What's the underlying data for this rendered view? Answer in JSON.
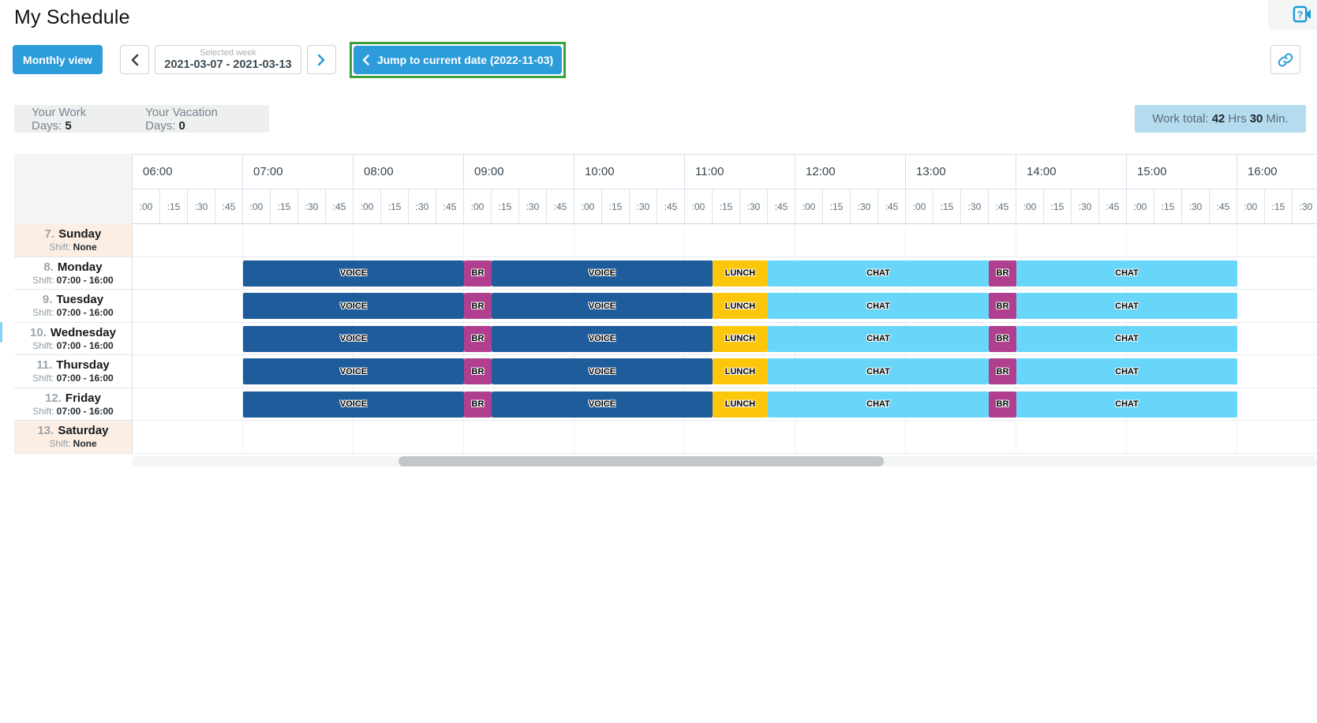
{
  "page": {
    "title": "My Schedule"
  },
  "toolbar": {
    "monthly_view": "Monthly view",
    "selected_week_label": "Selected week",
    "selected_week_value": "2021-03-07 - 2021-03-13",
    "jump_button": "Jump to current date (2022-11-03)"
  },
  "stats": {
    "work_days_label": "Your Work Days:",
    "work_days_value": "5",
    "vacation_days_label": "Your Vacation Days:",
    "vacation_days_value": "0",
    "work_total_label": "Work total:",
    "work_total_hours": "42",
    "work_total_hours_unit": "Hrs",
    "work_total_minutes": "30",
    "work_total_minutes_unit": "Min."
  },
  "icons": {
    "help": "help-icon",
    "link": "link-icon",
    "prev": "chevron-left-icon",
    "next": "chevron-right-icon",
    "jump": "chevron-left-icon"
  },
  "colors": {
    "voice": "#1f5c9b",
    "br": "#b0408f",
    "lunch": "#fcc60b",
    "chat": "#68d6f8",
    "accent": "#2d9cdb",
    "highlight_border": "#3aa13c",
    "off_day_bg": "#fdeee3",
    "work_total_bg": "#b4dcee"
  },
  "schedule": {
    "timeline_start": "06:00",
    "hours": [
      "06:00",
      "07:00",
      "08:00",
      "09:00",
      "10:00",
      "11:00",
      "12:00",
      "13:00",
      "14:00",
      "15:00",
      "16:00"
    ],
    "quarters": [
      ":00",
      ":15",
      ":30",
      ":45"
    ],
    "shift_label": "Shift:",
    "days": [
      {
        "number": "7.",
        "name": "Sunday",
        "shift": "None",
        "off": true,
        "segments": []
      },
      {
        "number": "8.",
        "name": "Monday",
        "shift": "07:00 - 16:00",
        "off": false,
        "segments": [
          {
            "label": "VOICE",
            "type": "voice",
            "start": "07:00",
            "end": "09:00"
          },
          {
            "label": "BR",
            "type": "br",
            "start": "09:00",
            "end": "09:15"
          },
          {
            "label": "VOICE",
            "type": "voice",
            "start": "09:15",
            "end": "11:15"
          },
          {
            "label": "LUNCH",
            "type": "lunch",
            "start": "11:15",
            "end": "11:45"
          },
          {
            "label": "CHAT",
            "type": "chat",
            "start": "11:45",
            "end": "13:45"
          },
          {
            "label": "BR",
            "type": "br",
            "start": "13:45",
            "end": "14:00"
          },
          {
            "label": "CHAT",
            "type": "chat",
            "start": "14:00",
            "end": "16:00"
          }
        ]
      },
      {
        "number": "9.",
        "name": "Tuesday",
        "shift": "07:00 - 16:00",
        "off": false,
        "segments": [
          {
            "label": "VOICE",
            "type": "voice",
            "start": "07:00",
            "end": "09:00"
          },
          {
            "label": "BR",
            "type": "br",
            "start": "09:00",
            "end": "09:15"
          },
          {
            "label": "VOICE",
            "type": "voice",
            "start": "09:15",
            "end": "11:15"
          },
          {
            "label": "LUNCH",
            "type": "lunch",
            "start": "11:15",
            "end": "11:45"
          },
          {
            "label": "CHAT",
            "type": "chat",
            "start": "11:45",
            "end": "13:45"
          },
          {
            "label": "BR",
            "type": "br",
            "start": "13:45",
            "end": "14:00"
          },
          {
            "label": "CHAT",
            "type": "chat",
            "start": "14:00",
            "end": "16:00"
          }
        ]
      },
      {
        "number": "10.",
        "name": "Wednesday",
        "shift": "07:00 - 16:00",
        "off": false,
        "segments": [
          {
            "label": "VOICE",
            "type": "voice",
            "start": "07:00",
            "end": "09:00"
          },
          {
            "label": "BR",
            "type": "br",
            "start": "09:00",
            "end": "09:15"
          },
          {
            "label": "VOICE",
            "type": "voice",
            "start": "09:15",
            "end": "11:15"
          },
          {
            "label": "LUNCH",
            "type": "lunch",
            "start": "11:15",
            "end": "11:45"
          },
          {
            "label": "CHAT",
            "type": "chat",
            "start": "11:45",
            "end": "13:45"
          },
          {
            "label": "BR",
            "type": "br",
            "start": "13:45",
            "end": "14:00"
          },
          {
            "label": "CHAT",
            "type": "chat",
            "start": "14:00",
            "end": "16:00"
          }
        ]
      },
      {
        "number": "11.",
        "name": "Thursday",
        "shift": "07:00 - 16:00",
        "off": false,
        "segments": [
          {
            "label": "VOICE",
            "type": "voice",
            "start": "07:00",
            "end": "09:00"
          },
          {
            "label": "BR",
            "type": "br",
            "start": "09:00",
            "end": "09:15"
          },
          {
            "label": "VOICE",
            "type": "voice",
            "start": "09:15",
            "end": "11:15"
          },
          {
            "label": "LUNCH",
            "type": "lunch",
            "start": "11:15",
            "end": "11:45"
          },
          {
            "label": "CHAT",
            "type": "chat",
            "start": "11:45",
            "end": "13:45"
          },
          {
            "label": "BR",
            "type": "br",
            "start": "13:45",
            "end": "14:00"
          },
          {
            "label": "CHAT",
            "type": "chat",
            "start": "14:00",
            "end": "16:00"
          }
        ]
      },
      {
        "number": "12.",
        "name": "Friday",
        "shift": "07:00 - 16:00",
        "off": false,
        "segments": [
          {
            "label": "VOICE",
            "type": "voice",
            "start": "07:00",
            "end": "09:00"
          },
          {
            "label": "BR",
            "type": "br",
            "start": "09:00",
            "end": "09:15"
          },
          {
            "label": "VOICE",
            "type": "voice",
            "start": "09:15",
            "end": "11:15"
          },
          {
            "label": "LUNCH",
            "type": "lunch",
            "start": "11:15",
            "end": "11:45"
          },
          {
            "label": "CHAT",
            "type": "chat",
            "start": "11:45",
            "end": "13:45"
          },
          {
            "label": "BR",
            "type": "br",
            "start": "13:45",
            "end": "14:00"
          },
          {
            "label": "CHAT",
            "type": "chat",
            "start": "14:00",
            "end": "16:00"
          }
        ]
      },
      {
        "number": "13.",
        "name": "Saturday",
        "shift": "None",
        "off": true,
        "segments": []
      }
    ]
  }
}
